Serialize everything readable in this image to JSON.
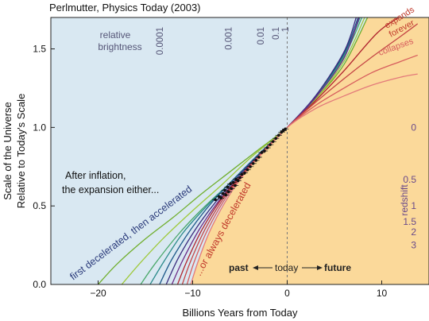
{
  "chart_data": {
    "type": "line",
    "title": "Perlmutter, Physics Today (2003)",
    "xlabel": "Billions Years from Today",
    "ylabel_line1": "Scale of the Universe",
    "ylabel_line2": "Relative to Today's Scale",
    "xlim": [
      -25,
      15
    ],
    "ylim": [
      0,
      1.7
    ],
    "xticks": [
      -20,
      -10,
      0,
      10
    ],
    "xtick_labels": [
      "−20",
      "−10",
      "0",
      "10"
    ],
    "yticks": [
      0,
      0.5,
      1.0,
      1.5
    ],
    "ytick_labels": [
      "0.0",
      "0.5",
      "1.0",
      "1.5"
    ],
    "grid": false,
    "today_line_x": 0,
    "colors": {
      "plot_bg": "#d9e8f2",
      "past_region": "#fbd99a",
      "future_region": "#fbd99a",
      "accelerating_labels": "#2a3a7a",
      "decelerating_labels": "#c0392b",
      "brightness_labels": "#555577",
      "redshift_labels": "#6a4a8a"
    },
    "brightness_label": {
      "line1": "relative",
      "line2": "brightness"
    },
    "brightness_ticks": [
      {
        "label": "0.0001",
        "x": -13.5
      },
      {
        "label": "0.001",
        "x": -6.2
      },
      {
        "label": "0.01",
        "x": -2.8
      },
      {
        "label": "0.1",
        "x": -1.2
      },
      {
        "label": "1",
        "x": -0.2
      }
    ],
    "redshift_label": "redshift",
    "redshift_ticks": [
      {
        "label": "0",
        "y": 1.0
      },
      {
        "label": "0.5",
        "y": 0.667
      },
      {
        "label": "1",
        "y": 0.5
      },
      {
        "label": "1.5",
        "y": 0.4
      },
      {
        "label": "2",
        "y": 0.333
      },
      {
        "label": "3",
        "y": 0.25
      }
    ],
    "annotations": {
      "after_inflation_1": "After inflation,",
      "after_inflation_2": "the expansion either...",
      "first_decel": "first decelerated, then accelerated",
      "always_decel": "...or always decelerated",
      "expands": "expands",
      "forever": "forever",
      "collapses": "collapses",
      "past": "past",
      "today": "today",
      "future": "future"
    },
    "series": [
      {
        "color": "#6fae2c",
        "values": [
          [
            -20,
            0.0
          ],
          [
            -18,
            0.13
          ],
          [
            -15,
            0.29
          ],
          [
            -12,
            0.43
          ],
          [
            -9,
            0.58
          ],
          [
            -6,
            0.72
          ],
          [
            -3,
            0.86
          ],
          [
            0,
            1.0
          ],
          [
            3,
            1.18
          ],
          [
            6,
            1.4
          ],
          [
            8.5,
            1.7
          ]
        ]
      },
      {
        "color": "#9ec93a",
        "values": [
          [
            -17.5,
            0.0
          ],
          [
            -15.5,
            0.14
          ],
          [
            -13,
            0.3
          ],
          [
            -10,
            0.47
          ],
          [
            -7,
            0.63
          ],
          [
            -4,
            0.8
          ],
          [
            -2,
            0.9
          ],
          [
            0,
            1.0
          ],
          [
            3,
            1.18
          ],
          [
            6,
            1.42
          ],
          [
            8.2,
            1.7
          ]
        ]
      },
      {
        "color": "#4aa86a",
        "values": [
          [
            -15.5,
            0.0
          ],
          [
            -14,
            0.13
          ],
          [
            -11.5,
            0.32
          ],
          [
            -9,
            0.48
          ],
          [
            -6,
            0.65
          ],
          [
            -3,
            0.83
          ],
          [
            0,
            1.0
          ],
          [
            3,
            1.19
          ],
          [
            6,
            1.45
          ],
          [
            7.9,
            1.7
          ]
        ]
      },
      {
        "color": "#2a8a8a",
        "values": [
          [
            -14.5,
            0.0
          ],
          [
            -13,
            0.15
          ],
          [
            -11,
            0.33
          ],
          [
            -8.5,
            0.5
          ],
          [
            -6,
            0.65
          ],
          [
            -3,
            0.83
          ],
          [
            0,
            1.0
          ],
          [
            3,
            1.19
          ],
          [
            6,
            1.46
          ],
          [
            7.7,
            1.7
          ]
        ]
      },
      {
        "color": "#1f5a8a",
        "values": [
          [
            -13.5,
            0.0
          ],
          [
            -12.2,
            0.16
          ],
          [
            -10.2,
            0.35
          ],
          [
            -8,
            0.52
          ],
          [
            -5.5,
            0.68
          ],
          [
            -3,
            0.83
          ],
          [
            0,
            1.0
          ],
          [
            3,
            1.2
          ],
          [
            6,
            1.47
          ],
          [
            7.5,
            1.7
          ]
        ]
      },
      {
        "color": "#3b2c7e",
        "values": [
          [
            -12.8,
            0.0
          ],
          [
            -11.5,
            0.17
          ],
          [
            -9.6,
            0.36
          ],
          [
            -7.5,
            0.53
          ],
          [
            -5,
            0.7
          ],
          [
            -2.5,
            0.85
          ],
          [
            0,
            1.0
          ],
          [
            3,
            1.2
          ],
          [
            6,
            1.48
          ],
          [
            7.3,
            1.7
          ]
        ]
      },
      {
        "color": "#6c2a86",
        "values": [
          [
            -12.2,
            0.0
          ],
          [
            -11,
            0.16
          ],
          [
            -9.2,
            0.36
          ],
          [
            -7,
            0.55
          ],
          [
            -4.5,
            0.72
          ],
          [
            -2.5,
            0.85
          ],
          [
            0,
            1.0
          ],
          [
            3,
            1.19
          ],
          [
            6,
            1.44
          ],
          [
            7.6,
            1.7
          ]
        ]
      },
      {
        "color": "#b0232e",
        "values": [
          [
            -11.6,
            0.0
          ],
          [
            -10.6,
            0.15
          ],
          [
            -9,
            0.35
          ],
          [
            -7,
            0.54
          ],
          [
            -4.5,
            0.72
          ],
          [
            -2.5,
            0.85
          ],
          [
            0,
            1.0
          ],
          [
            3,
            1.17
          ],
          [
            6,
            1.36
          ],
          [
            9.5,
            1.6
          ],
          [
            11.8,
            1.7
          ]
        ]
      },
      {
        "color": "#c44545",
        "values": [
          [
            -11.1,
            0.0
          ],
          [
            -10.2,
            0.15
          ],
          [
            -8.7,
            0.35
          ],
          [
            -6.7,
            0.55
          ],
          [
            -4.3,
            0.73
          ],
          [
            -2.2,
            0.87
          ],
          [
            0,
            1.0
          ],
          [
            3,
            1.16
          ],
          [
            6,
            1.31
          ],
          [
            9,
            1.45
          ],
          [
            12,
            1.58
          ],
          [
            13.8,
            1.66
          ]
        ]
      },
      {
        "color": "#d75d5d",
        "values": [
          [
            -10.6,
            0.0
          ],
          [
            -9.8,
            0.15
          ],
          [
            -8.4,
            0.35
          ],
          [
            -6.4,
            0.56
          ],
          [
            -4.1,
            0.74
          ],
          [
            -2,
            0.88
          ],
          [
            0,
            1.0
          ],
          [
            3,
            1.14
          ],
          [
            6,
            1.25
          ],
          [
            9,
            1.35
          ],
          [
            12,
            1.42
          ],
          [
            13.8,
            1.46
          ]
        ]
      },
      {
        "color": "#e37a7a",
        "values": [
          [
            -10.2,
            0.0
          ],
          [
            -9.4,
            0.15
          ],
          [
            -8.1,
            0.35
          ],
          [
            -6.1,
            0.57
          ],
          [
            -3.9,
            0.75
          ],
          [
            -1.9,
            0.88
          ],
          [
            0,
            1.0
          ],
          [
            3,
            1.12
          ],
          [
            6,
            1.2
          ],
          [
            9,
            1.27
          ],
          [
            12,
            1.32
          ],
          [
            13.8,
            1.34
          ]
        ]
      }
    ],
    "supernovae": [
      [
        -7.6,
        0.54
      ],
      [
        -7.2,
        0.56
      ],
      [
        -7.0,
        0.55
      ],
      [
        -6.8,
        0.58
      ],
      [
        -6.6,
        0.6
      ],
      [
        -6.5,
        0.57
      ],
      [
        -6.3,
        0.62
      ],
      [
        -6.2,
        0.59
      ],
      [
        -6.0,
        0.64
      ],
      [
        -5.9,
        0.61
      ],
      [
        -5.7,
        0.65
      ],
      [
        -5.5,
        0.63
      ],
      [
        -5.4,
        0.67
      ],
      [
        -5.2,
        0.66
      ],
      [
        -5.0,
        0.68
      ],
      [
        -4.8,
        0.7
      ],
      [
        -4.5,
        0.71
      ],
      [
        -4.2,
        0.73
      ],
      [
        -3.9,
        0.75
      ],
      [
        -3.6,
        0.77
      ],
      [
        -3.3,
        0.79
      ],
      [
        -3.0,
        0.81
      ],
      [
        -2.7,
        0.84
      ],
      [
        -2.4,
        0.85
      ],
      [
        -2.1,
        0.87
      ],
      [
        -1.8,
        0.89
      ],
      [
        -1.5,
        0.91
      ],
      [
        -1.2,
        0.93
      ],
      [
        -0.9,
        0.95
      ],
      [
        -0.6,
        0.97
      ],
      [
        -0.4,
        0.98
      ],
      [
        -0.2,
        0.99
      ]
    ]
  }
}
